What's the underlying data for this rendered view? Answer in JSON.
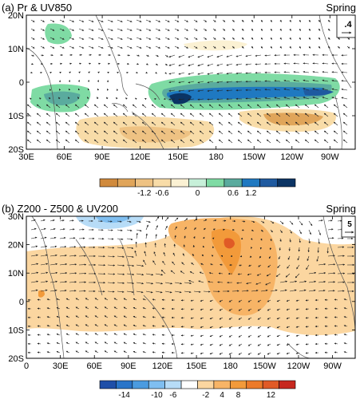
{
  "chart_data": [
    {
      "type": "map-contour-vector",
      "panel_label": "(a) Pr & UV850",
      "season": "Spring",
      "ref_vector": ".4",
      "lon_ticks": [
        "30E",
        "60E",
        "90E",
        "120E",
        "150E",
        "180",
        "150W",
        "120W",
        "90W"
      ],
      "lon_range": [
        30,
        290
      ],
      "lat_ticks": [
        "20N",
        "10N",
        "0",
        "10S",
        "20S"
      ],
      "lat_range": [
        -20,
        20
      ],
      "colorbar_labels": [
        "-1.2",
        "-0.6",
        "0",
        "0.6",
        "1.2"
      ],
      "colorbar_colors": [
        "#d08a3c",
        "#e0a55a",
        "#eec283",
        "#f8dca8",
        "#fbf1d3",
        "#c7f0d9",
        "#7fdba4",
        "#5aab9e",
        "#1f79c1",
        "#1f5aa0",
        "#0b3464"
      ],
      "contours": [
        {
          "level": 1.2,
          "lon": [
            145,
            275
          ],
          "lat": [
            -6,
            0
          ]
        },
        {
          "level": 0.6,
          "lon": [
            45,
            100
          ],
          "lat": [
            -8,
            -2
          ]
        },
        {
          "level": 0.3,
          "lon": [
            55,
            70
          ],
          "lat": [
            10,
            17
          ]
        },
        {
          "level": -0.6,
          "lon": [
            95,
            180
          ],
          "lat": [
            -18,
            -10
          ]
        },
        {
          "level": -0.6,
          "lon": [
            215,
            260
          ],
          "lat": [
            -14,
            -8
          ]
        }
      ]
    },
    {
      "type": "map-contour-vector",
      "panel_label": "(b) Z200 - Z500 & UV200",
      "season": "Spring",
      "ref_vector": "5",
      "lon_ticks": [
        "0",
        "30E",
        "60E",
        "90E",
        "120E",
        "150E",
        "180",
        "150W",
        "120W",
        "90W"
      ],
      "lon_range": [
        0,
        290
      ],
      "lat_ticks": [
        "30N",
        "20N",
        "10N",
        "0",
        "10S",
        "20S"
      ],
      "lat_range": [
        -20,
        30
      ],
      "colorbar_labels": [
        "-14",
        "-10",
        "-6",
        "-2",
        "4",
        "8",
        "12"
      ],
      "colorbar_colors": [
        "#1f4fa8",
        "#2a75c9",
        "#4b9be0",
        "#7fbef0",
        "#b7dcf7",
        "#ffffff",
        "#fbd6a0",
        "#f7b466",
        "#f29a3a",
        "#ec7a2a",
        "#e05a26",
        "#c7281f"
      ],
      "contours": [
        {
          "level": 4,
          "lon": [
            0,
            290
          ],
          "lat": [
            -10,
            12
          ]
        },
        {
          "level": 8,
          "lon": [
            160,
            200
          ],
          "lat": [
            -5,
            25
          ]
        },
        {
          "level": 12,
          "lon": [
            175,
            182
          ],
          "lat": [
            18,
            21
          ]
        },
        {
          "level": -6,
          "lon": [
            50,
            110
          ],
          "lat": [
            25,
            30
          ]
        }
      ]
    }
  ]
}
